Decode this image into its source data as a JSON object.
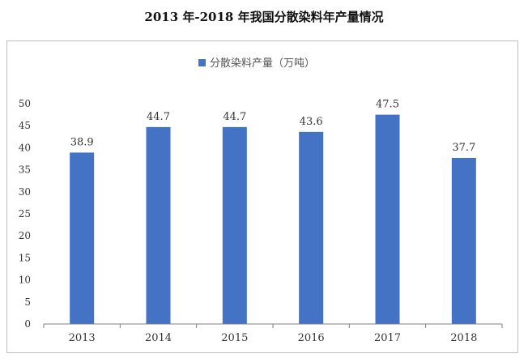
{
  "page_title": "2013 年-2018 年我国分散染料年产量情况",
  "chart_data": {
    "type": "bar",
    "categories": [
      "2013",
      "2014",
      "2015",
      "2016",
      "2017",
      "2018"
    ],
    "series": [
      {
        "name": "分散染料产量（万吨）",
        "values": [
          38.9,
          44.7,
          44.7,
          43.6,
          47.5,
          37.7
        ]
      }
    ],
    "data_labels": [
      "38.9",
      "44.7",
      "44.7",
      "43.6",
      "47.5",
      "37.7"
    ],
    "ylim": [
      0,
      50
    ],
    "yticks": [
      "0",
      "5",
      "10",
      "15",
      "20",
      "25",
      "30",
      "35",
      "40",
      "45",
      "50"
    ],
    "xlabel": "",
    "ylabel": "",
    "legend_position": "top-center",
    "grid": false,
    "colors": {
      "bar": "#4472C4",
      "axis": "#7f7f7f",
      "label": "#333333"
    }
  }
}
